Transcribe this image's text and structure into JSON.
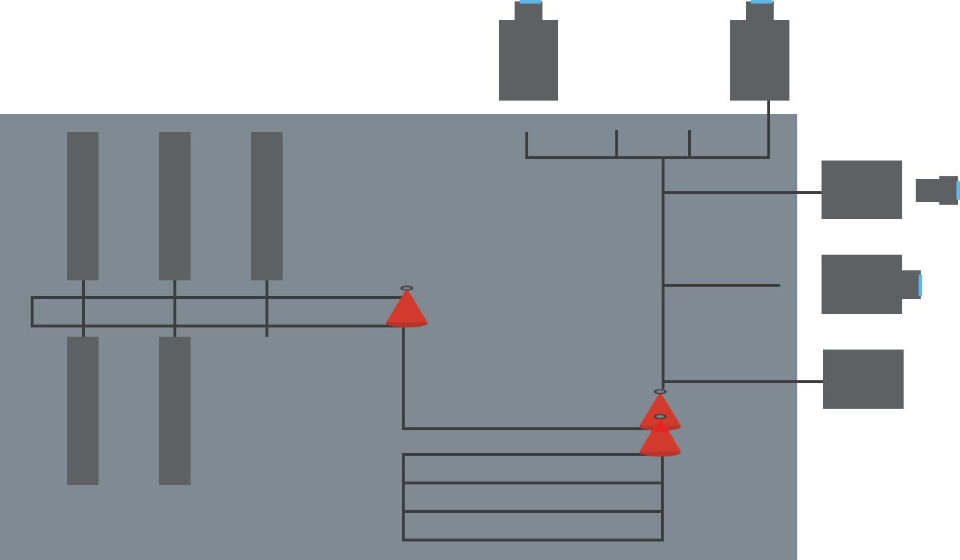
{
  "colors": {
    "background": "#ffffff",
    "floor": "#7f8a93",
    "equipment": "#5e6164",
    "pipe": "#3b3d3f",
    "nozzle": "#d23a2c",
    "nozzle_highlight": "#e5251f",
    "indicator": "#5bb8e6"
  },
  "elements": {
    "tanks_upper": [
      "tank",
      "tank",
      "tank"
    ],
    "tanks_lower": [
      "tank",
      "tank"
    ],
    "units_top": [
      "unit",
      "unit"
    ],
    "units_right": [
      "unit",
      "unit",
      "unit"
    ],
    "small_devices": [
      "device",
      "device"
    ],
    "nozzles": [
      "nozzle",
      "nozzle",
      "nozzle"
    ]
  },
  "icons": {
    "nozzle": "cone-nozzle-icon",
    "indicator": "indicator-light-icon"
  }
}
